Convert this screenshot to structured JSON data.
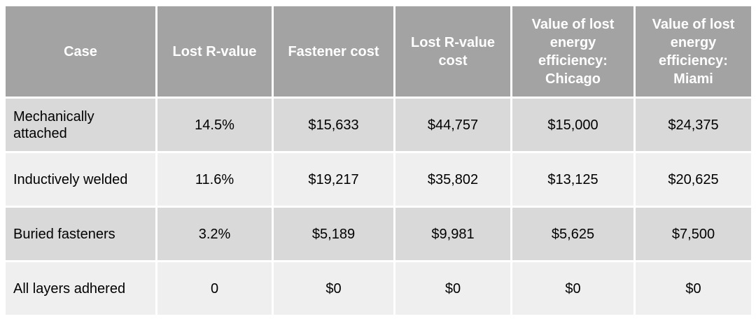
{
  "table": {
    "headers": [
      "Case",
      "Lost R-value",
      "Fastener cost",
      "Lost R-value cost",
      "Value of lost energy efficiency: Chicago",
      "Value of lost energy efficiency: Miami"
    ],
    "rows": [
      {
        "case": "Mechanically attached",
        "lost_r_value": "14.5%",
        "fastener_cost": "$15,633",
        "lost_r_value_cost": "$44,757",
        "value_chicago": "$15,000",
        "value_miami": "$24,375"
      },
      {
        "case": "Inductively welded",
        "lost_r_value": "11.6%",
        "fastener_cost": "$19,217",
        "lost_r_value_cost": "$35,802",
        "value_chicago": "$13,125",
        "value_miami": "$20,625"
      },
      {
        "case": "Buried fasteners",
        "lost_r_value": "3.2%",
        "fastener_cost": "$5,189",
        "lost_r_value_cost": "$9,981",
        "value_chicago": "$5,625",
        "value_miami": "$7,500"
      },
      {
        "case": "All layers adhered",
        "lost_r_value": "0",
        "fastener_cost": "$0",
        "lost_r_value_cost": "$0",
        "value_chicago": "$0",
        "value_miami": "$0"
      }
    ]
  },
  "colors": {
    "header_bg": "#a3a3a3",
    "header_text": "#ffffff",
    "row_dark": "#d9d9d9",
    "row_light": "#efefef",
    "border": "#ffffff"
  }
}
